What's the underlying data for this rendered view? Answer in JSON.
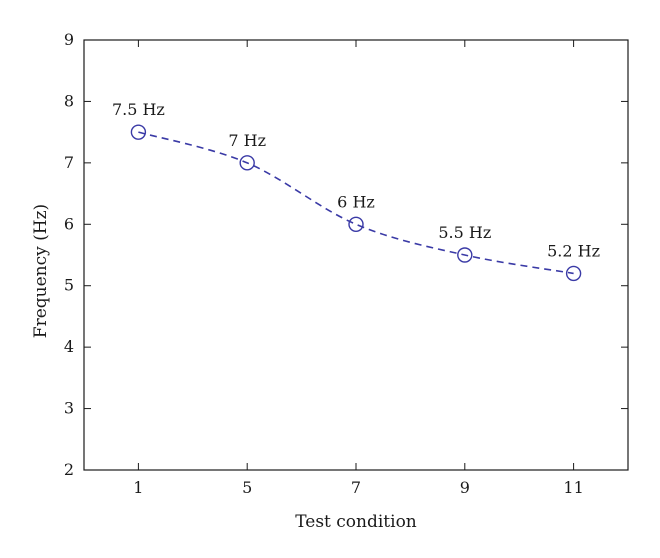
{
  "chart_data": {
    "type": "line",
    "title": "",
    "xlabel": "Test condition",
    "ylabel": "Frequency (Hz)",
    "categories": [
      "1",
      "5",
      "7",
      "9",
      "11"
    ],
    "ylim": [
      2,
      9
    ],
    "yticks": [
      "2",
      "3",
      "4",
      "5",
      "6",
      "7",
      "8",
      "9"
    ],
    "grid": false,
    "legend": "none",
    "series": [
      {
        "values": [
          7.5,
          7.0,
          6.0,
          5.5,
          5.2
        ],
        "labels": [
          "7.5 Hz",
          "7 Hz",
          "6 Hz",
          "5.5 Hz",
          "5.2 Hz"
        ],
        "color": "#3a3aa6",
        "line_style": "dashed",
        "marker": "open-circle"
      }
    ]
  }
}
